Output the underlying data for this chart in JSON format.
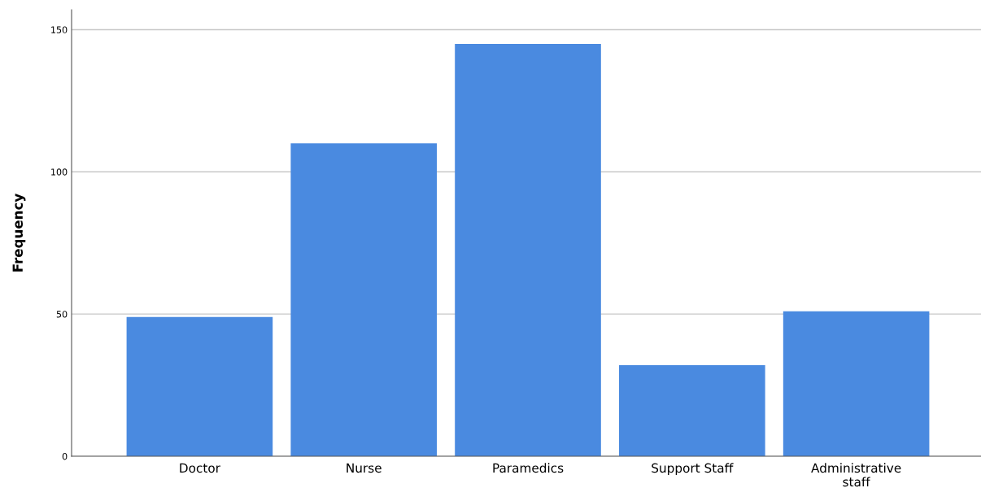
{
  "chart_data": {
    "type": "bar",
    "ylabel": "Frequency",
    "categories": [
      "Doctor",
      "Nurse",
      "Paramedics",
      "Support Staff",
      "Administrative\nstaff"
    ],
    "values": [
      49,
      110,
      145,
      32,
      51
    ],
    "color": "#4a8ae0",
    "ylim": [
      0,
      157
    ],
    "yticks": [
      0,
      50,
      100,
      150
    ],
    "grid": "y"
  }
}
